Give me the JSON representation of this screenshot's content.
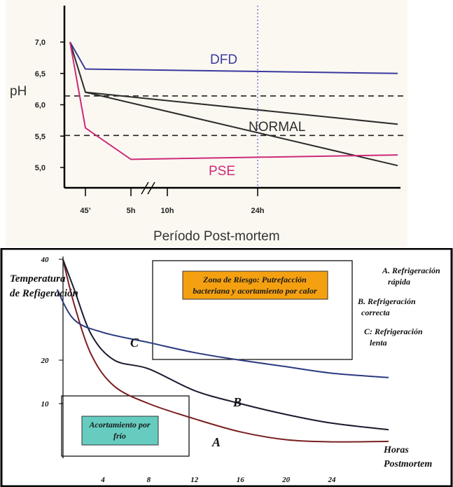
{
  "charts": [
    {
      "chart_data": {
        "type": "line",
        "xlabel": "Período Post-mortem",
        "ylabel": "pH",
        "x_tick_labels": [
          "45’",
          "5h",
          "10h",
          "24h"
        ],
        "y_tick_labels": [
          "5,0",
          "5,5",
          "6,0",
          "6,5",
          "7,0"
        ],
        "ylim": [
          4.6,
          7.3
        ],
        "series": [
          {
            "name": "DFD",
            "color": "#3a3aa0",
            "points": [
              [
                0,
                7.0
              ],
              [
                0.75,
                6.57
              ],
              [
                24,
                6.5
              ]
            ]
          },
          {
            "name": "NORMAL",
            "color": "#2b2b2b",
            "points": [
              [
                0,
                7.0
              ],
              [
                0.75,
                6.2
              ],
              [
                24,
                5.69
              ]
            ],
            "points_b": [
              [
                0.75,
                6.2
              ],
              [
                24,
                5.03
              ]
            ]
          },
          {
            "name": "PSE",
            "color": "#cc2a7a",
            "points": [
              [
                0,
                7.0
              ],
              [
                0.75,
                5.63
              ],
              [
                5,
                5.13
              ],
              [
                24,
                5.2
              ]
            ]
          }
        ],
        "reference_lines_y": [
          6.14,
          5.51
        ],
        "vertical_marker_x": 24
      }
    },
    {
      "chart_data": {
        "type": "line",
        "ylabel": "Temperatura de Refigeración",
        "xlabel": "Horas Postmortem",
        "x_tick_labels": [
          "4",
          "8",
          "12",
          "16",
          "20",
          "24"
        ],
        "y_tick_labels": [
          "10",
          "20",
          "40"
        ],
        "series": [
          {
            "name": "A",
            "color": "#7a2020",
            "points": [
              [
                0.5,
                40
              ],
              [
                1.5,
                31
              ],
              [
                3,
                21
              ],
              [
                5,
                14
              ],
              [
                8,
                10
              ],
              [
                12,
                6.5
              ],
              [
                16,
                3.5
              ],
              [
                20,
                1.7
              ],
              [
                24,
                1.2
              ],
              [
                30,
                1.3
              ]
            ]
          },
          {
            "name": "B",
            "color": "#1a1a2e",
            "points": [
              [
                0.5,
                40
              ],
              [
                1.5,
                34
              ],
              [
                3,
                25
              ],
              [
                5,
                20
              ],
              [
                8,
                18
              ],
              [
                12,
                13
              ],
              [
                16,
                10
              ],
              [
                20,
                7.5
              ],
              [
                24,
                5.5
              ],
              [
                30,
                4
              ]
            ]
          },
          {
            "name": "C",
            "color": "#2a3a80",
            "points": [
              [
                0,
                34
              ],
              [
                1.5,
                28
              ],
              [
                4,
                25.5
              ],
              [
                8,
                23.5
              ],
              [
                12,
                21.5
              ],
              [
                16,
                20
              ],
              [
                20,
                18.5
              ],
              [
                24,
                17
              ],
              [
                30,
                16
              ]
            ]
          }
        ],
        "annotations": {
          "risk_zone": "Zona de Riesgo: Putrefacción bacteriana y acortamiento por calor",
          "cold_zone": "Acortamiento por frío"
        },
        "legend": [
          "A. Refrigeración rápida",
          "B. Refrigeración correcta",
          "C: Refrigeración lenta"
        ]
      }
    }
  ],
  "colors": {
    "risk_box_fill": "#f5a010",
    "cold_box_fill": "#66ccc0"
  }
}
